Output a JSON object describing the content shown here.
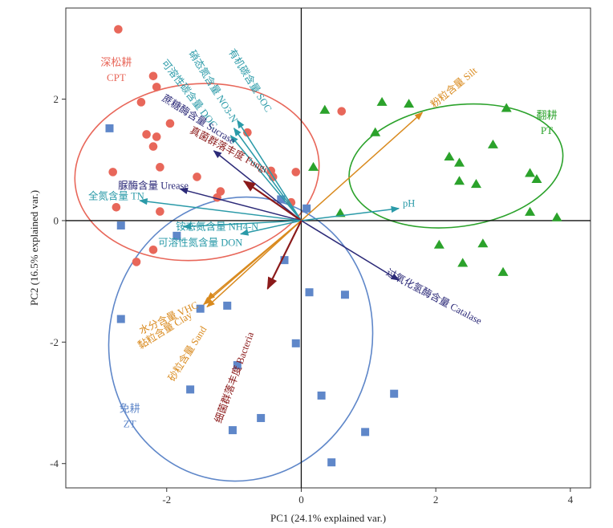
{
  "chart_data": {
    "type": "scatter",
    "subtype": "pca-biplot",
    "xlabel": "PC1 (24.1% explained var.)",
    "ylabel": "PC2 (16.5% explained var.)",
    "xlim": [
      -3.5,
      4.3
    ],
    "ylim": [
      -4.4,
      3.5
    ],
    "xticks": [
      -2,
      0,
      2,
      4
    ],
    "yticks": [
      -4,
      -2,
      0,
      2
    ],
    "grid": false,
    "groups": [
      {
        "id": "CPT",
        "label_cn": "深松耕",
        "label_en": "CPT",
        "color": "#E8675A",
        "marker": "circle",
        "label_at": [
          -2.75,
          2.55
        ],
        "ellipse": {
          "cx": -1.55,
          "cy": 0.8,
          "rx": 1.82,
          "ry": 1.45,
          "angle": 6
        },
        "points": [
          [
            -2.72,
            3.15
          ],
          [
            -2.2,
            2.38
          ],
          [
            -2.15,
            2.2
          ],
          [
            -2.38,
            1.95
          ],
          [
            -1.95,
            1.6
          ],
          [
            -2.3,
            1.42
          ],
          [
            -2.15,
            1.38
          ],
          [
            -2.2,
            1.22
          ],
          [
            -2.8,
            0.8
          ],
          [
            -2.1,
            0.88
          ],
          [
            -1.55,
            0.72
          ],
          [
            -1.2,
            0.48
          ],
          [
            -1.25,
            0.38
          ],
          [
            -2.75,
            0.22
          ],
          [
            -2.1,
            0.15
          ],
          [
            -0.45,
            0.82
          ],
          [
            -0.42,
            0.72
          ],
          [
            -0.8,
            1.45
          ],
          [
            -0.15,
            0.3
          ],
          [
            -0.08,
            0.8
          ],
          [
            -2.2,
            -0.48
          ],
          [
            -2.45,
            -0.68
          ],
          [
            0.6,
            1.8
          ]
        ]
      },
      {
        "id": "PT",
        "label_cn": "翻耕",
        "label_en": "PT",
        "color": "#2BA22B",
        "marker": "triangle",
        "label_at": [
          3.65,
          1.68
        ],
        "ellipse": {
          "cx": 2.3,
          "cy": 0.9,
          "rx": 1.6,
          "ry": 1.0,
          "angle": 8
        },
        "points": [
          [
            0.35,
            1.82
          ],
          [
            1.2,
            1.95
          ],
          [
            1.6,
            1.92
          ],
          [
            3.05,
            1.85
          ],
          [
            1.1,
            1.45
          ],
          [
            2.85,
            1.25
          ],
          [
            2.2,
            1.05
          ],
          [
            2.35,
            0.95
          ],
          [
            3.4,
            0.78
          ],
          [
            3.5,
            0.68
          ],
          [
            2.35,
            0.65
          ],
          [
            2.6,
            0.6
          ],
          [
            0.18,
            0.88
          ],
          [
            0.58,
            0.12
          ],
          [
            3.4,
            0.14
          ],
          [
            3.8,
            0.05
          ],
          [
            2.05,
            -0.4
          ],
          [
            2.7,
            -0.38
          ],
          [
            2.4,
            -0.7
          ],
          [
            3.0,
            -0.85
          ]
        ]
      },
      {
        "id": "ZT",
        "label_cn": "免耕",
        "label_en": "ZT",
        "color": "#5F87C9",
        "marker": "square",
        "label_at": [
          -2.55,
          -3.15
        ],
        "ellipse": {
          "cx": -0.9,
          "cy": -1.95,
          "rx": 1.95,
          "ry": 2.35,
          "angle": -15
        },
        "points": [
          [
            -2.85,
            1.52
          ],
          [
            -2.68,
            -0.08
          ],
          [
            -1.85,
            -0.25
          ],
          [
            -0.3,
            0.35
          ],
          [
            0.08,
            0.2
          ],
          [
            -0.25,
            -0.65
          ],
          [
            -1.1,
            -1.4
          ],
          [
            -1.5,
            -1.45
          ],
          [
            -2.68,
            -1.62
          ],
          [
            0.12,
            -1.18
          ],
          [
            0.65,
            -1.22
          ],
          [
            -0.08,
            -2.02
          ],
          [
            -0.95,
            -2.38
          ],
          [
            -1.65,
            -2.78
          ],
          [
            0.3,
            -2.88
          ],
          [
            1.38,
            -2.85
          ],
          [
            -0.6,
            -3.25
          ],
          [
            -1.02,
            -3.45
          ],
          [
            0.95,
            -3.48
          ],
          [
            0.45,
            -3.98
          ]
        ]
      }
    ],
    "vectors": [
      {
        "id": "soc",
        "label": "有机碳含量 SOC",
        "color": "#2A9AA8",
        "end": [
          -0.95,
          1.65
        ],
        "label_at": [
          -0.8,
          2.28
        ],
        "rotate": 58
      },
      {
        "id": "no3n",
        "label": "硝态氮含量 NO3-N",
        "color": "#2A9AA8",
        "end": [
          -1.0,
          1.52
        ],
        "label_at": [
          -1.35,
          2.18
        ],
        "rotate": 58
      },
      {
        "id": "doc",
        "label": "可溶性碳含量 DOC",
        "color": "#2A9AA8",
        "end": [
          -1.05,
          1.4
        ],
        "label_at": [
          -1.7,
          2.05
        ],
        "rotate": 52
      },
      {
        "id": "sucrase",
        "label": "蔗糖酶含量 Sucrase",
        "color": "#2C2A78",
        "end": [
          -1.3,
          1.15
        ],
        "label_at": [
          -1.55,
          1.62
        ],
        "rotate": 32
      },
      {
        "id": "fungi",
        "label": "真菌群落丰度 Fungi",
        "color": "#8B1A1A",
        "end": [
          -0.85,
          0.65
        ],
        "label_at": [
          -1.1,
          1.12
        ],
        "rotate": 28
      },
      {
        "id": "urease",
        "label": "脲酶含量 Urease",
        "color": "#2C2A78",
        "end": [
          -1.8,
          0.52
        ],
        "label_at": [
          -2.2,
          0.52
        ],
        "rotate": 0
      },
      {
        "id": "tn",
        "label": "全氮含量 TN",
        "color": "#2A9AA8",
        "end": [
          -2.4,
          0.33
        ],
        "label_at": [
          -2.75,
          0.35
        ],
        "rotate": 0
      },
      {
        "id": "nh4n",
        "label": "铵态氮含量 NH4-N",
        "color": "#2A9AA8",
        "end": [
          -1.75,
          -0.1
        ],
        "label_at": [
          -1.25,
          -0.15
        ],
        "rotate": 0
      },
      {
        "id": "don",
        "label": "可溶性氮含量 DON",
        "color": "#2A9AA8",
        "end": [
          -0.9,
          -0.22
        ],
        "label_at": [
          -1.5,
          -0.42
        ],
        "rotate": 0
      },
      {
        "id": "silt",
        "label": "粉粒含量 Silt",
        "color": "#D98A1E",
        "end": [
          1.8,
          1.78
        ],
        "label_at": [
          2.3,
          2.15
        ],
        "rotate": -40
      },
      {
        "id": "ph",
        "label": "pH",
        "color": "#2A9AA8",
        "end": [
          1.45,
          0.2
        ],
        "label_at": [
          1.6,
          0.23
        ],
        "rotate": 0
      },
      {
        "id": "catalase",
        "label": "过氧化氢酶含量 Catalase",
        "color": "#2C2A78",
        "end": [
          1.45,
          -0.98
        ],
        "label_at": [
          1.95,
          -1.3
        ],
        "rotate": 28
      },
      {
        "id": "vhc",
        "label": "水分含量 VHC",
        "color": "#D98A1E",
        "end": [
          -1.4,
          -1.3
        ],
        "label_at": [
          -1.95,
          -1.65
        ],
        "rotate": -25
      },
      {
        "id": "clay",
        "label": "黏粒含量 Clay",
        "color": "#D98A1E",
        "end": [
          -1.45,
          -1.38
        ],
        "label_at": [
          -2.0,
          -1.85
        ],
        "rotate": -32
      },
      {
        "id": "sand",
        "label": "砂粒含量 Sand",
        "color": "#D98A1E",
        "end": [
          -1.4,
          -1.42
        ],
        "label_at": [
          -1.65,
          -2.22
        ],
        "rotate": -58
      },
      {
        "id": "bacteria",
        "label": "细菌群落丰度 Bacteria",
        "color": "#8B1A1A",
        "end": [
          -0.5,
          -1.12
        ],
        "label_at": [
          -0.95,
          -2.6
        ],
        "rotate": -70
      }
    ]
  }
}
